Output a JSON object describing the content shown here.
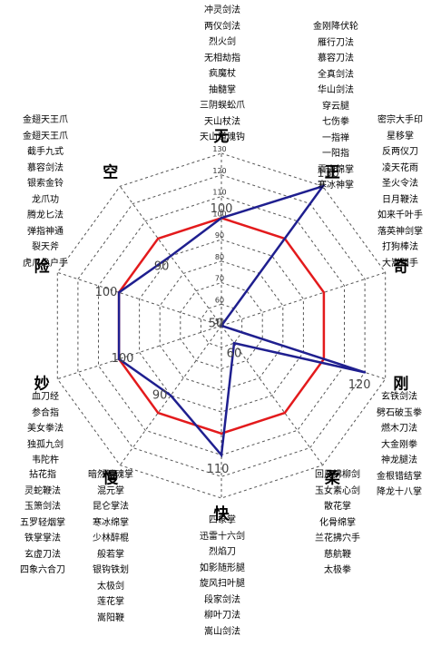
{
  "chart_data": {
    "type": "radar",
    "axes": [
      "无",
      "正",
      "奇",
      "刚",
      "柔",
      "快",
      "慢",
      "妙",
      "险",
      "空"
    ],
    "rlim": [
      50,
      130
    ],
    "ticks": [
      50,
      60,
      70,
      80,
      90,
      100,
      110,
      120,
      130
    ],
    "grid": true,
    "series": [
      {
        "color": "#e31a1c",
        "values": [
          100,
          100,
          100,
          100,
          100,
          100,
          100,
          100,
          100,
          100
        ]
      },
      {
        "color": "#1f1f8f",
        "values": [
          100,
          130,
          50,
          120,
          60,
          110,
          90,
          100,
          100,
          90
        ]
      }
    ],
    "value_labels": [
      {
        "axis": 0,
        "text": "100"
      },
      {
        "axis": 1,
        "text": "130"
      },
      {
        "axis": 2,
        "text": "50"
      },
      {
        "axis": 3,
        "text": "120"
      },
      {
        "axis": 4,
        "text": "60"
      },
      {
        "axis": 5,
        "text": "110"
      },
      {
        "axis": 6,
        "text": "90"
      },
      {
        "axis": 7,
        "text": "100"
      },
      {
        "axis": 8,
        "text": "100"
      },
      {
        "axis": 9,
        "text": "90"
      }
    ]
  },
  "skills": {
    "wu": [
      "冲灵剑法",
      "两仪剑法",
      "烈火剑",
      "无相劫指",
      "疯魔杖",
      "抽髓掌",
      "三阴蜈蚣爪",
      "天山杖法",
      "天山道魂钩"
    ],
    "zheng": [
      "金刚降伏轮",
      "雁行刀法",
      "慕容刀法",
      "全真剑法",
      "华山剑法",
      "穿云腿",
      "七伤拳",
      "一指禅",
      "一阳指",
      "震山绵掌",
      "寒冰神掌"
    ],
    "qi": [
      "密宗大手印",
      "星移掌",
      "反两仪刀",
      "凌天花雨",
      "圣火令法",
      "日月鞭法",
      "如来千叶手",
      "落英神剑掌",
      "打狗棒法",
      "大嵩阳手"
    ],
    "kong": [
      "金翅天王爪",
      "金翅天王爪",
      "截手九式",
      "慕容剑法",
      "银索金铃",
      "龙爪功",
      "腾龙匕法",
      "弹指神通",
      "裂天斧",
      "虎爪绝户手"
    ],
    "miao": [
      "血刀经",
      "参合指",
      "美女拳法",
      "独孤九剑",
      "韦陀杵"
    ],
    "gang": [
      "玄铁剑法",
      "劈石破玉拳",
      "燃木刀法",
      "大金刚拳",
      "神龙腿法",
      "金根错结掌",
      "降龙十八掌"
    ],
    "man": [
      "拈花指",
      "灵蛇鞭法",
      "玉箫剑法",
      "五罗轻烟掌",
      "铁掌掌法",
      "玄虚刀法",
      "四象六合刀"
    ],
    "man2": [
      "暗然销魂掌",
      "混元掌",
      "昆仑掌法",
      "寒冰绵掌",
      "少林醉棍",
      "般若掌",
      "银钩铁划",
      "太极剑",
      "莲花掌",
      "嵩阳鞭"
    ],
    "rou": [
      "回风拂柳剑",
      "玉女素心剑",
      "散花掌",
      "化骨绵掌",
      "兰花拂穴手",
      "慈航鞭",
      "太极拳"
    ],
    "kuai": [
      "四象掌",
      "迅雷十六剑",
      "烈焰刀",
      "如影随形腿",
      "旋风扫叶腿",
      "段家剑法",
      "柳叶刀法",
      "嵩山剑法"
    ]
  }
}
